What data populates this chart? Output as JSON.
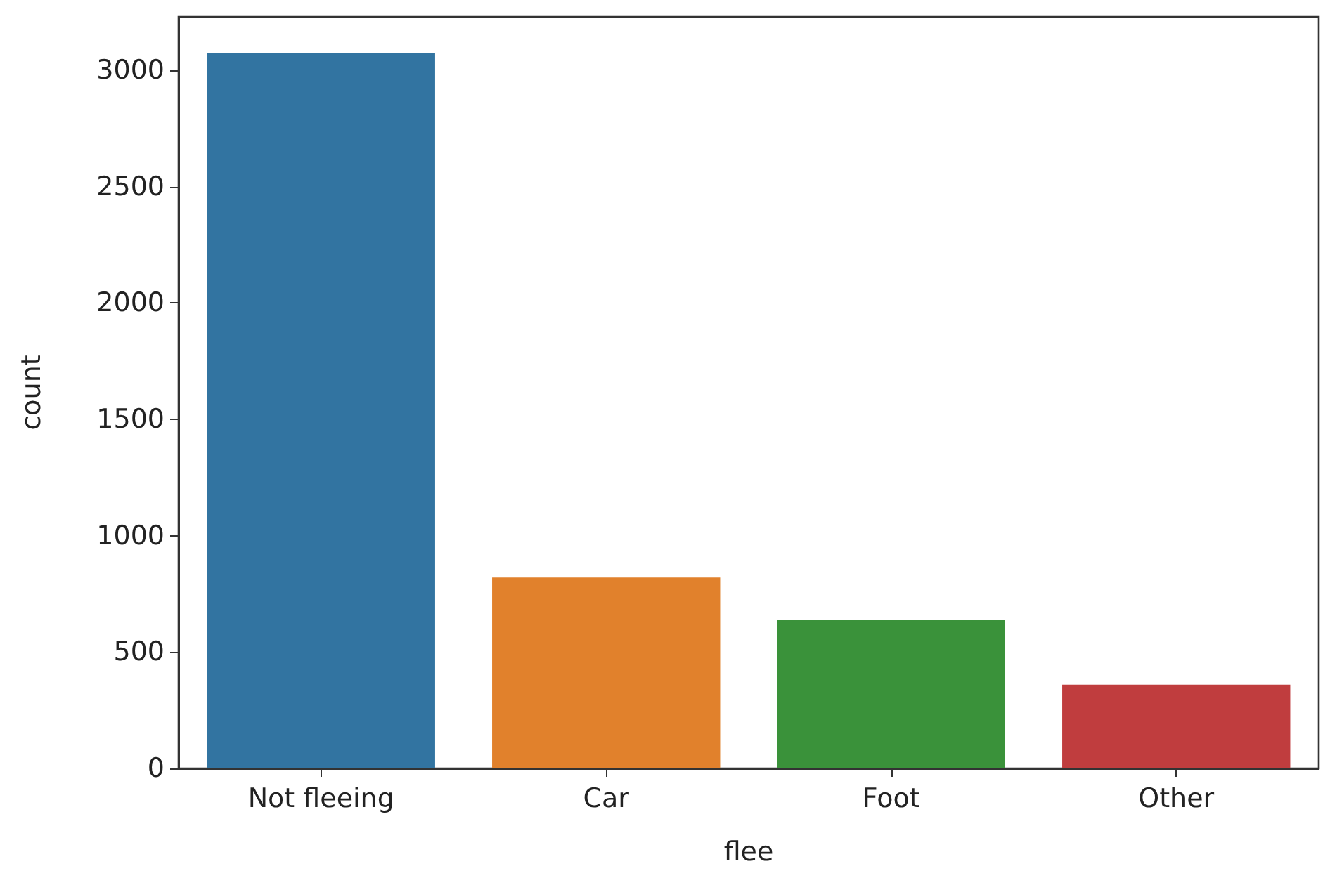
{
  "chart_data": {
    "type": "bar",
    "xlabel": "flee",
    "ylabel": "count",
    "categories": [
      "Not fleeing",
      "Car",
      "Foot",
      "Other"
    ],
    "values": [
      3075,
      820,
      640,
      360
    ],
    "colors": [
      "#3274a1",
      "#e1812c",
      "#3a923a",
      "#c03d3e"
    ],
    "ylim": [
      0,
      3230
    ],
    "yticks": [
      0,
      500,
      1000,
      1500,
      2000,
      2500,
      3000
    ],
    "grid": false
  }
}
